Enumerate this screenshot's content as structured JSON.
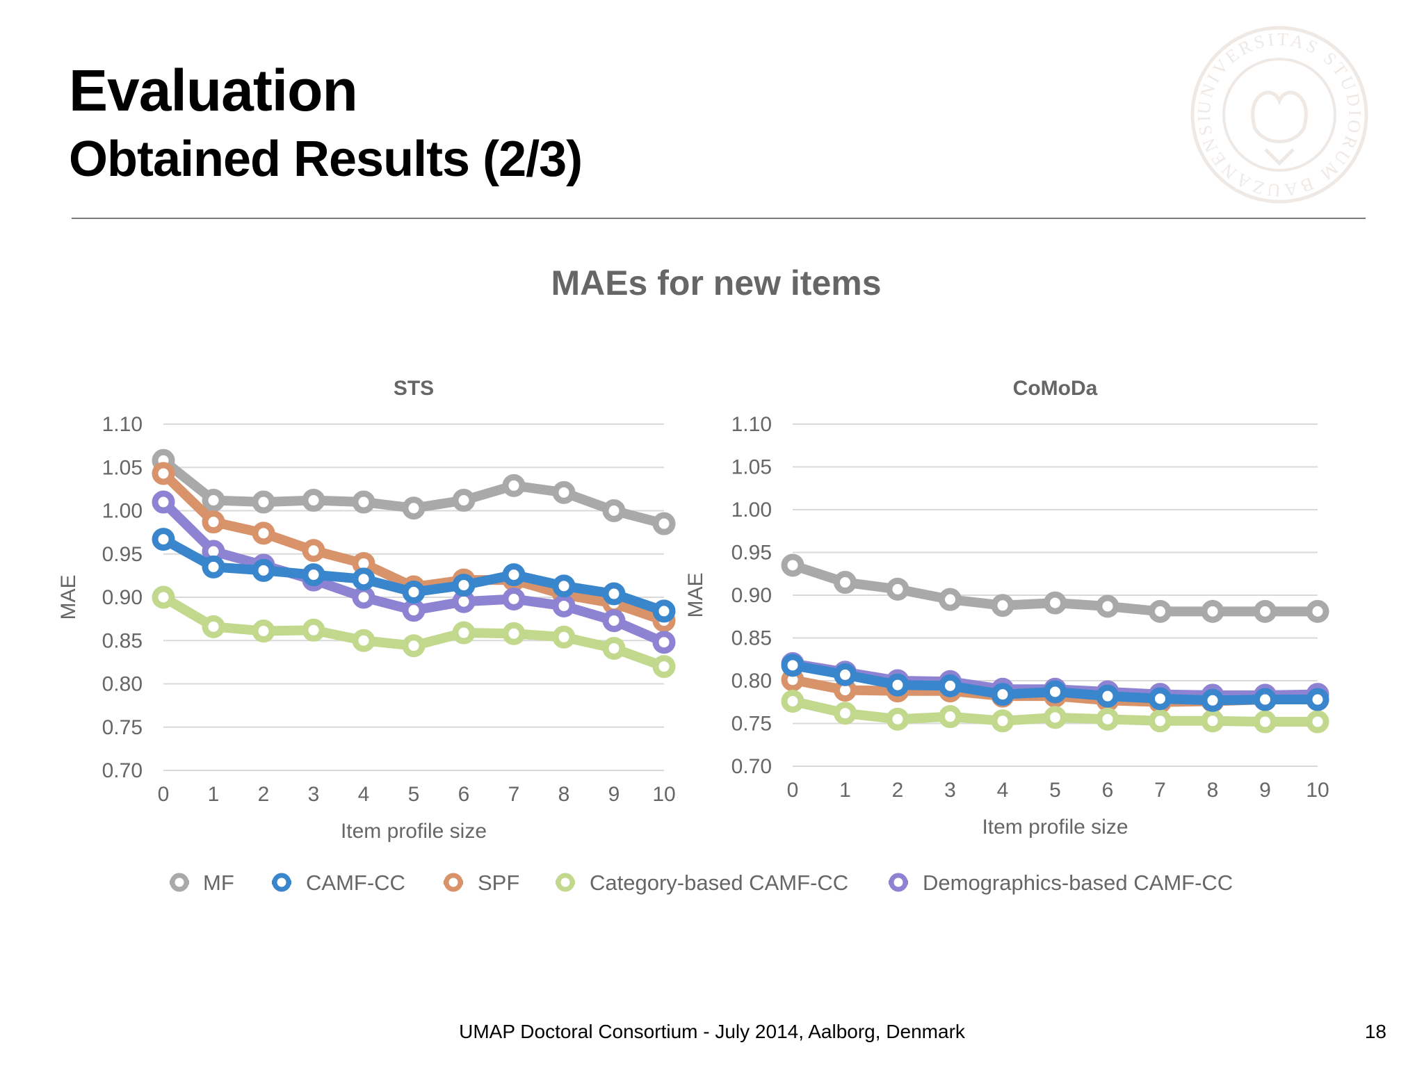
{
  "slide": {
    "title": "Evaluation",
    "subtitle": "Obtained Results (2/3)",
    "footer": "UMAP Doctoral Consortium - July 2014, Aalborg, Denmark",
    "page_number": "18",
    "logo_text": "UNIVERSITAS STUDIORUM BAUZANENSIS"
  },
  "figure": {
    "title": "MAEs for new items"
  },
  "legend": {
    "placement": "bottom-center",
    "items": [
      "MF",
      "CAMF-CC",
      "SPF",
      "Category-based CAMF-CC",
      "Demographics-based CAMF-CC"
    ]
  },
  "colors": {
    "MF": "#a9a9a9",
    "CAMF-CC": "#3a86cc",
    "SPF": "#d9936a",
    "Category-based CAMF-CC": "#c2d98d",
    "Demographics-based CAMF-CC": "#8e83d2",
    "grid": "#d9d9d9",
    "text": "#666666"
  },
  "chart_data": [
    {
      "type": "line",
      "title": "STS",
      "xlabel": "Item profile size",
      "ylabel": "MAE",
      "x": [
        0,
        1,
        2,
        3,
        4,
        5,
        6,
        7,
        8,
        9,
        10
      ],
      "ylim": [
        0.7,
        1.1
      ],
      "yticks": [
        "0.70",
        "0.75",
        "0.80",
        "0.85",
        "0.90",
        "0.95",
        "1.00",
        "1.05",
        "1.10"
      ],
      "grid": true,
      "series": [
        {
          "name": "MF",
          "values": [
            1.058,
            1.012,
            1.01,
            1.012,
            1.01,
            1.003,
            1.012,
            1.029,
            1.021,
            1.0,
            0.985
          ]
        },
        {
          "name": "SPF",
          "values": [
            1.043,
            0.987,
            0.974,
            0.954,
            0.939,
            0.912,
            0.92,
            0.92,
            0.903,
            0.893,
            0.873
          ]
        },
        {
          "name": "Demographics-based CAMF-CC",
          "values": [
            1.01,
            0.953,
            0.937,
            0.92,
            0.9,
            0.885,
            0.895,
            0.898,
            0.89,
            0.873,
            0.848
          ]
        },
        {
          "name": "Category-based CAMF-CC",
          "values": [
            0.9,
            0.866,
            0.861,
            0.862,
            0.85,
            0.844,
            0.859,
            0.858,
            0.854,
            0.841,
            0.82
          ]
        },
        {
          "name": "CAMF-CC",
          "values": [
            0.967,
            0.935,
            0.931,
            0.926,
            0.921,
            0.906,
            0.914,
            0.926,
            0.913,
            0.904,
            0.884
          ]
        }
      ]
    },
    {
      "type": "line",
      "title": "CoMoDa",
      "xlabel": "Item profile size",
      "ylabel": "MAE",
      "x": [
        0,
        1,
        2,
        3,
        4,
        5,
        6,
        7,
        8,
        9,
        10
      ],
      "ylim": [
        0.7,
        1.1
      ],
      "yticks": [
        "0.70",
        "0.75",
        "0.80",
        "0.85",
        "0.90",
        "0.95",
        "1.00",
        "1.05",
        "1.10"
      ],
      "grid": true,
      "series": [
        {
          "name": "MF",
          "values": [
            0.935,
            0.915,
            0.907,
            0.895,
            0.888,
            0.891,
            0.887,
            0.881,
            0.881,
            0.881,
            0.881
          ]
        },
        {
          "name": "SPF",
          "values": [
            0.801,
            0.789,
            0.788,
            0.788,
            0.782,
            0.782,
            0.777,
            0.775,
            0.776,
            0.778,
            0.778
          ]
        },
        {
          "name": "Demographics-based CAMF-CC",
          "values": [
            0.82,
            0.81,
            0.8,
            0.799,
            0.79,
            0.79,
            0.787,
            0.784,
            0.783,
            0.783,
            0.784
          ]
        },
        {
          "name": "Category-based CAMF-CC",
          "values": [
            0.776,
            0.762,
            0.755,
            0.758,
            0.753,
            0.757,
            0.755,
            0.753,
            0.753,
            0.752,
            0.752
          ]
        },
        {
          "name": "CAMF-CC",
          "values": [
            0.818,
            0.807,
            0.795,
            0.794,
            0.784,
            0.787,
            0.782,
            0.779,
            0.777,
            0.778,
            0.778
          ]
        }
      ]
    }
  ]
}
